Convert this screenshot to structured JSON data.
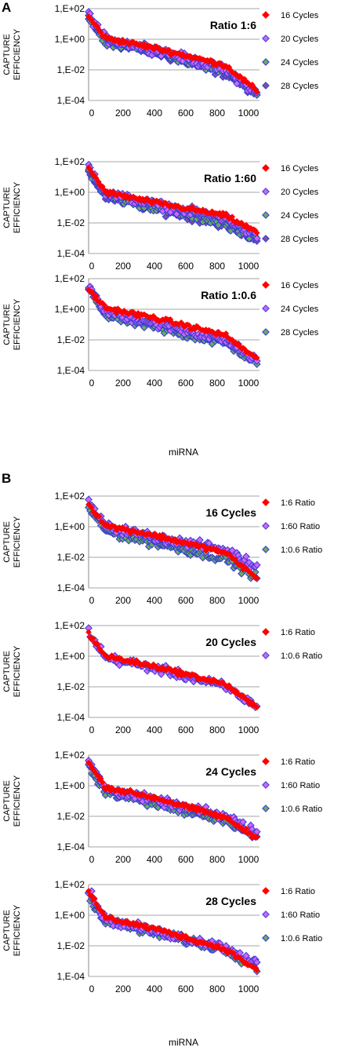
{
  "figure": {
    "panel_a_label": "A",
    "panel_b_label": "B",
    "xlabel_a": "miRNA",
    "xlabel_b": "miRNA"
  },
  "chart_data": [
    {
      "type": "scatter",
      "title": "Ratio 1:6",
      "ylabel": "CAPTURE EFFICIENCY",
      "ylog": true,
      "ylim": [
        0.0001,
        100
      ],
      "yticks": [
        "1,E+02",
        "1,E+00",
        "1,E-02",
        "1,E-04"
      ],
      "xlim": [
        0,
        1000
      ],
      "xticks": [
        "0",
        "200",
        "400",
        "600",
        "800",
        "1000"
      ],
      "grid": "horizontal",
      "legend_position": "right",
      "series": [
        {
          "name": "16 Cycles",
          "color": "#ff0000",
          "y_at_x": [
            [
              0,
              30
            ],
            [
              100,
              1.2
            ],
            [
              400,
              0.25
            ],
            [
              800,
              0.02
            ],
            [
              1000,
              0.0003
            ]
          ]
        },
        {
          "name": "20 Cycles",
          "color": "#cc66ff",
          "y_at_x": [
            [
              0,
              40
            ],
            [
              100,
              1.0
            ],
            [
              400,
              0.2
            ],
            [
              800,
              0.01
            ],
            [
              1000,
              0.0002
            ]
          ]
        },
        {
          "name": "24 Cycles",
          "color": "#66aa66",
          "y_at_x": [
            [
              0,
              25
            ],
            [
              100,
              0.8
            ],
            [
              400,
              0.15
            ],
            [
              800,
              0.008
            ],
            [
              1000,
              0.0002
            ]
          ]
        },
        {
          "name": "28 Cycles",
          "color": "#7755aa",
          "y_at_x": [
            [
              0,
              20
            ],
            [
              100,
              0.7
            ],
            [
              400,
              0.12
            ],
            [
              800,
              0.006
            ],
            [
              1000,
              0.0002
            ]
          ]
        }
      ]
    },
    {
      "type": "scatter",
      "title": "Ratio 1:60",
      "ylabel": "CAPTURE EFFICIENCY",
      "ylog": true,
      "ylim": [
        0.0001,
        100
      ],
      "yticks": [
        "1,E+02",
        "1,E+00",
        "1,E-02",
        "1,E-04"
      ],
      "xlim": [
        0,
        1000
      ],
      "xticks": [
        "0",
        "200",
        "400",
        "600",
        "800",
        "1000"
      ],
      "grid": "horizontal",
      "legend_position": "right",
      "series": [
        {
          "name": "16 Cycles",
          "color": "#ff0000",
          "y_at_x": [
            [
              0,
              40
            ],
            [
              100,
              1.0
            ],
            [
              400,
              0.2
            ],
            [
              800,
              0.03
            ],
            [
              1000,
              0.002
            ]
          ]
        },
        {
          "name": "20 Cycles",
          "color": "#cc66ff",
          "y_at_x": [
            [
              0,
              50
            ],
            [
              100,
              0.9
            ],
            [
              400,
              0.15
            ],
            [
              800,
              0.02
            ],
            [
              1000,
              0.001
            ]
          ]
        },
        {
          "name": "24 Cycles",
          "color": "#66aa66",
          "y_at_x": [
            [
              0,
              30
            ],
            [
              100,
              0.6
            ],
            [
              400,
              0.1
            ],
            [
              800,
              0.01
            ],
            [
              1000,
              0.0008
            ]
          ]
        },
        {
          "name": "28 Cycles",
          "color": "#7755aa",
          "y_at_x": [
            [
              0,
              25
            ],
            [
              100,
              0.5
            ],
            [
              400,
              0.08
            ],
            [
              800,
              0.008
            ],
            [
              1000,
              0.0006
            ]
          ]
        }
      ]
    },
    {
      "type": "scatter",
      "title": "Ratio 1:0.6",
      "ylabel": "CAPTURE EFFICIENCY",
      "ylog": true,
      "ylim": [
        0.0001,
        100
      ],
      "yticks": [
        "1,E+02",
        "1,E+00",
        "1,E-02",
        "1,E-04"
      ],
      "xlim": [
        0,
        1000
      ],
      "xticks": [
        "0",
        "200",
        "400",
        "600",
        "800",
        "1000"
      ],
      "grid": "horizontal",
      "legend_position": "right",
      "series": [
        {
          "name": "16 Cycles",
          "color": "#ff0000",
          "y_at_x": [
            [
              0,
              20
            ],
            [
              100,
              1.2
            ],
            [
              400,
              0.25
            ],
            [
              800,
              0.02
            ],
            [
              1000,
              0.0004
            ]
          ]
        },
        {
          "name": "24 Cycles",
          "color": "#cc66ff",
          "y_at_x": [
            [
              0,
              25
            ],
            [
              100,
              0.7
            ],
            [
              400,
              0.1
            ],
            [
              800,
              0.01
            ],
            [
              1000,
              0.0003
            ]
          ]
        },
        {
          "name": "28 Cycles",
          "color": "#66aa66",
          "y_at_x": [
            [
              0,
              20
            ],
            [
              100,
              0.4
            ],
            [
              400,
              0.06
            ],
            [
              800,
              0.006
            ],
            [
              1000,
              0.0003
            ]
          ]
        }
      ]
    },
    {
      "type": "scatter",
      "title": "16 Cycles",
      "ylabel": "CAPTURE EFFICIENCY",
      "ylog": true,
      "ylim": [
        0.0001,
        100
      ],
      "yticks": [
        "1,E+02",
        "1,E+00",
        "1,E-02",
        "1,E-04"
      ],
      "xlim": [
        0,
        1000
      ],
      "xticks": [
        "0",
        "200",
        "400",
        "600",
        "800",
        "1000"
      ],
      "grid": "horizontal",
      "legend_position": "right",
      "series": [
        {
          "name": "1:6 Ratio",
          "color": "#ff0000",
          "y_at_x": [
            [
              0,
              30
            ],
            [
              100,
              1.2
            ],
            [
              400,
              0.25
            ],
            [
              800,
              0.02
            ],
            [
              1000,
              0.0003
            ]
          ]
        },
        {
          "name": "1:60 Ratio",
          "color": "#cc66ff",
          "y_at_x": [
            [
              0,
              40
            ],
            [
              100,
              1.0
            ],
            [
              400,
              0.2
            ],
            [
              800,
              0.03
            ],
            [
              1000,
              0.002
            ]
          ]
        },
        {
          "name": "1:0.6 Ratio",
          "color": "#66aa66",
          "y_at_x": [
            [
              0,
              20
            ],
            [
              100,
              0.5
            ],
            [
              400,
              0.08
            ],
            [
              800,
              0.008
            ],
            [
              1000,
              0.0004
            ]
          ]
        }
      ]
    },
    {
      "type": "scatter",
      "title": "20 Cycles",
      "ylabel": "CAPTURE EFFICIENCY",
      "ylog": true,
      "ylim": [
        0.0001,
        100
      ],
      "yticks": [
        "1,E+02",
        "1,E+00",
        "1,E-02",
        "1,E-04"
      ],
      "xlim": [
        0,
        1000
      ],
      "xticks": [
        "0",
        "200",
        "400",
        "600",
        "800",
        "1000"
      ],
      "grid": "horizontal",
      "legend_position": "right",
      "series": [
        {
          "name": "1:6 Ratio",
          "color": "#ff0000",
          "y_at_x": [
            [
              0,
              30
            ],
            [
              100,
              1.0
            ],
            [
              400,
              0.2
            ],
            [
              800,
              0.015
            ],
            [
              1000,
              0.0003
            ]
          ]
        },
        {
          "name": "1:0.6 Ratio",
          "color": "#cc66ff",
          "y_at_x": [
            [
              0,
              40
            ],
            [
              100,
              0.8
            ],
            [
              400,
              0.15
            ],
            [
              800,
              0.01
            ],
            [
              1000,
              0.0004
            ]
          ]
        }
      ]
    },
    {
      "type": "scatter",
      "title": "24 Cycles",
      "ylabel": "CAPTURE EFFICIENCY",
      "ylog": true,
      "ylim": [
        0.0001,
        100
      ],
      "yticks": [
        "1,E+02",
        "1,E+00",
        "1,E-02",
        "1,E-04"
      ],
      "xlim": [
        0,
        1000
      ],
      "xticks": [
        "0",
        "200",
        "400",
        "600",
        "800",
        "1000"
      ],
      "grid": "horizontal",
      "legend_position": "right",
      "series": [
        {
          "name": "1:6 Ratio",
          "color": "#ff0000",
          "y_at_x": [
            [
              0,
              30
            ],
            [
              100,
              0.8
            ],
            [
              400,
              0.15
            ],
            [
              800,
              0.008
            ],
            [
              1000,
              0.0003
            ]
          ]
        },
        {
          "name": "1:60 Ratio",
          "color": "#cc66ff",
          "y_at_x": [
            [
              0,
              40
            ],
            [
              100,
              0.6
            ],
            [
              400,
              0.1
            ],
            [
              800,
              0.01
            ],
            [
              1000,
              0.0008
            ]
          ]
        },
        {
          "name": "1:0.6 Ratio",
          "color": "#66aa66",
          "y_at_x": [
            [
              0,
              20
            ],
            [
              100,
              0.4
            ],
            [
              400,
              0.06
            ],
            [
              800,
              0.006
            ],
            [
              1000,
              0.0003
            ]
          ]
        }
      ]
    },
    {
      "type": "scatter",
      "title": "28 Cycles",
      "ylabel": "CAPTURE EFFICIENCY",
      "ylog": true,
      "ylim": [
        0.0001,
        100
      ],
      "yticks": [
        "1,E+02",
        "1,E+00",
        "1,E-02",
        "1,E-04"
      ],
      "xlim": [
        0,
        1000
      ],
      "xticks": [
        "0",
        "200",
        "400",
        "600",
        "800",
        "1000"
      ],
      "grid": "horizontal",
      "legend_position": "right",
      "series": [
        {
          "name": "1:6 Ratio",
          "color": "#ff0000",
          "y_at_x": [
            [
              0,
              30
            ],
            [
              100,
              0.7
            ],
            [
              400,
              0.12
            ],
            [
              800,
              0.006
            ],
            [
              1000,
              0.0002
            ]
          ]
        },
        {
          "name": "1:60 Ratio",
          "color": "#cc66ff",
          "y_at_x": [
            [
              0,
              40
            ],
            [
              100,
              0.5
            ],
            [
              400,
              0.08
            ],
            [
              800,
              0.008
            ],
            [
              1000,
              0.0006
            ]
          ]
        },
        {
          "name": "1:0.6 Ratio",
          "color": "#66aa66",
          "y_at_x": [
            [
              0,
              20
            ],
            [
              100,
              0.4
            ],
            [
              400,
              0.06
            ],
            [
              800,
              0.006
            ],
            [
              1000,
              0.0003
            ]
          ]
        }
      ]
    }
  ]
}
